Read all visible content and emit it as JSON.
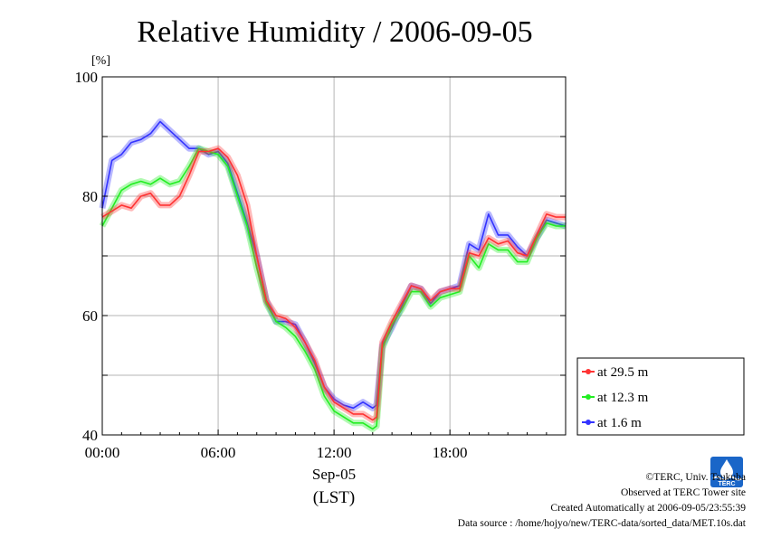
{
  "chart_data": {
    "type": "line",
    "title": "Relative Humidity / 2006-09-05",
    "ylabel": "[%]",
    "xlabel": [
      "Sep-05",
      "(LST)"
    ],
    "x_ticks": [
      "00:00",
      "06:00",
      "12:00",
      "18:00"
    ],
    "y_ticks": [
      40,
      60,
      80,
      100
    ],
    "ylim": [
      40,
      100
    ],
    "xlim_hours": [
      0,
      23.99
    ],
    "grid": true,
    "legend_position": "right",
    "x": [
      0.0,
      0.5,
      1.0,
      1.5,
      2.0,
      2.5,
      3.0,
      3.5,
      4.0,
      4.5,
      5.0,
      5.5,
      6.0,
      6.5,
      7.0,
      7.5,
      8.0,
      8.5,
      9.0,
      9.5,
      10.0,
      10.5,
      11.0,
      11.5,
      12.0,
      12.5,
      13.0,
      13.5,
      14.0,
      14.2,
      14.5,
      15.0,
      15.5,
      16.0,
      16.5,
      17.0,
      17.5,
      18.0,
      18.5,
      19.0,
      19.5,
      20.0,
      20.5,
      21.0,
      21.5,
      22.0,
      22.5,
      23.0,
      23.5,
      23.99
    ],
    "series": [
      {
        "name": "at 29.5 m",
        "color": "#ff3333",
        "values": [
          76.5,
          77.5,
          78.5,
          78.0,
          80.0,
          80.5,
          78.5,
          78.5,
          80.0,
          83.5,
          87.5,
          87.5,
          88.0,
          86.5,
          83.5,
          78.5,
          70.0,
          62.5,
          60.0,
          59.5,
          58.0,
          55.5,
          52.5,
          48.0,
          45.5,
          44.5,
          43.5,
          43.5,
          42.5,
          43.0,
          55.5,
          59.0,
          62.0,
          65.0,
          64.5,
          62.5,
          64.0,
          64.5,
          64.5,
          70.5,
          70.0,
          73.0,
          72.0,
          72.5,
          70.5,
          70.0,
          73.5,
          77.0,
          76.5,
          76.5
        ]
      },
      {
        "name": "at 12.3 m",
        "color": "#22ee22",
        "values": [
          75.0,
          78.0,
          81.0,
          82.0,
          82.5,
          82.0,
          83.0,
          82.0,
          82.5,
          85.0,
          88.0,
          87.5,
          87.0,
          85.0,
          80.0,
          75.0,
          68.0,
          62.0,
          59.0,
          58.0,
          56.5,
          54.0,
          51.0,
          46.5,
          44.0,
          43.0,
          42.0,
          42.0,
          41.0,
          41.5,
          54.5,
          58.5,
          61.0,
          64.0,
          64.0,
          61.5,
          63.0,
          63.5,
          64.0,
          70.0,
          68.0,
          72.0,
          71.0,
          71.0,
          69.0,
          69.0,
          73.0,
          75.5,
          75.0,
          75.0
        ]
      },
      {
        "name": "at 1.6 m",
        "color": "#3333ff",
        "values": [
          78.0,
          86.0,
          87.0,
          89.0,
          89.5,
          90.5,
          92.5,
          91.0,
          89.5,
          88.0,
          88.0,
          87.0,
          87.5,
          85.5,
          80.5,
          75.5,
          70.0,
          62.5,
          59.0,
          59.0,
          58.5,
          55.5,
          52.0,
          48.0,
          46.0,
          45.0,
          44.5,
          45.5,
          44.5,
          45.0,
          55.0,
          58.0,
          61.5,
          65.0,
          64.5,
          62.0,
          64.0,
          64.5,
          65.0,
          72.0,
          71.0,
          77.0,
          73.5,
          73.5,
          71.5,
          70.0,
          73.0,
          76.0,
          75.5,
          75.0
        ]
      }
    ]
  },
  "footer": {
    "line1": "©TERC, Univ. Tsukuba",
    "line2": "Observed at TERC Tower site",
    "line3": "Created Automatically at 2006-09-05/23:55:39",
    "line4": "Data source : /home/hojyo/new/TERC-data/sorted_data/MET.10s.dat"
  },
  "logo": {
    "icon": "terc-logo-icon",
    "text": "TERC",
    "color": "#1a66c8"
  }
}
